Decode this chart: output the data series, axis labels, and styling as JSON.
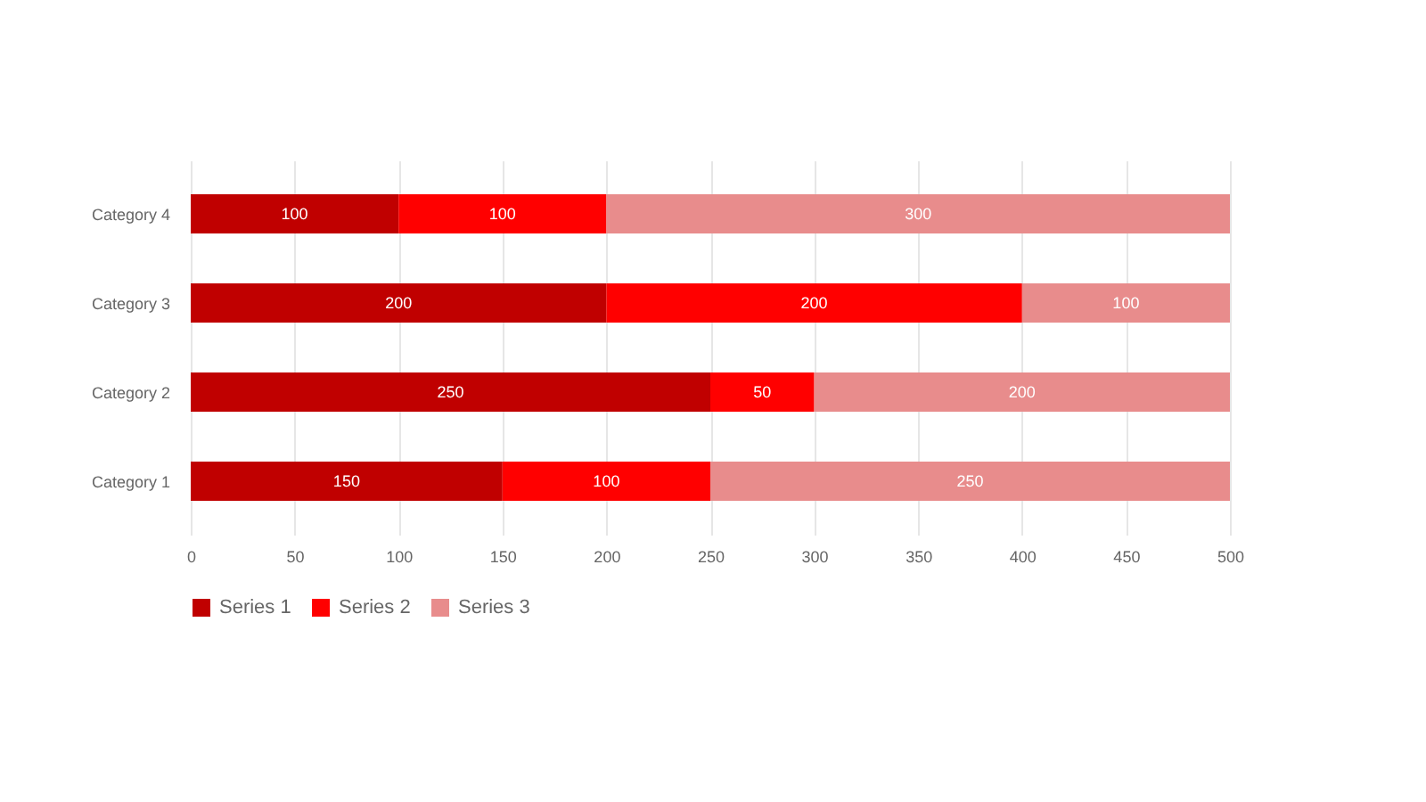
{
  "chart_data": {
    "type": "bar",
    "orientation": "horizontal",
    "stacked": true,
    "categories": [
      "Category 4",
      "Category 3",
      "Category 2",
      "Category 1"
    ],
    "series": [
      {
        "name": "Series 1",
        "color": "#c00000",
        "values": [
          100,
          200,
          250,
          150
        ]
      },
      {
        "name": "Series 2",
        "color": "#ff0000",
        "values": [
          100,
          200,
          50,
          100
        ]
      },
      {
        "name": "Series 3",
        "color": "#e88c8c",
        "values": [
          300,
          100,
          200,
          250
        ]
      }
    ],
    "xlim": [
      0,
      500
    ],
    "xticks": [
      0,
      50,
      100,
      150,
      200,
      250,
      300,
      350,
      400,
      450,
      500
    ],
    "grid": "x",
    "legend": "bottom",
    "data_labels": true
  }
}
